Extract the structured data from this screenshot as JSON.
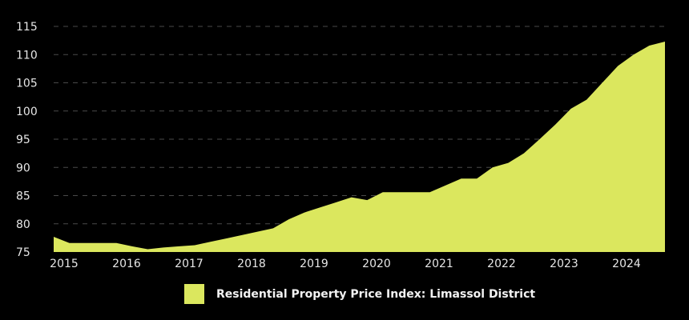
{
  "chart_data": {
    "type": "area",
    "title": "",
    "xlabel": "",
    "ylabel": "",
    "ylim": [
      75,
      115
    ],
    "yticks": [
      "75",
      "80",
      "85",
      "90",
      "95",
      "100",
      "105",
      "110",
      "115"
    ],
    "xticks": [
      "2015",
      "2016",
      "2017",
      "2018",
      "2019",
      "2020",
      "2021",
      "2022",
      "2023",
      "2024"
    ],
    "grid": "horizontal dashed",
    "legend_position": "bottom",
    "x": [
      "2014-Q4",
      "2015-Q1",
      "2015-Q2",
      "2015-Q3",
      "2015-Q4",
      "2016-Q1",
      "2016-Q2",
      "2016-Q3",
      "2016-Q4",
      "2017-Q1",
      "2017-Q2",
      "2017-Q3",
      "2017-Q4",
      "2018-Q1",
      "2018-Q2",
      "2018-Q3",
      "2018-Q4",
      "2019-Q1",
      "2019-Q2",
      "2019-Q3",
      "2019-Q4",
      "2020-Q1",
      "2020-Q2",
      "2020-Q3",
      "2020-Q4",
      "2021-Q1",
      "2021-Q2",
      "2021-Q3",
      "2021-Q4",
      "2022-Q1",
      "2022-Q2",
      "2022-Q3",
      "2022-Q4",
      "2023-Q1",
      "2023-Q2",
      "2023-Q3",
      "2023-Q4",
      "2024-Q1",
      "2024-Q2",
      "2024-Q3"
    ],
    "series": [
      {
        "name": "Residential Property Price Index: Limassol District",
        "color": "#dbe75e",
        "values": [
          77.7,
          76.6,
          76.6,
          76.6,
          76.6,
          76.0,
          75.5,
          75.8,
          76.0,
          76.2,
          76.8,
          77.4,
          78.0,
          78.6,
          79.2,
          80.8,
          82.0,
          82.9,
          83.8,
          84.7,
          84.2,
          85.6,
          85.6,
          85.6,
          85.6,
          86.8,
          88.0,
          88.0,
          90.0,
          90.8,
          92.5,
          95.0,
          97.6,
          100.4,
          102.0,
          105.0,
          108.0,
          110.0,
          111.6,
          112.3
        ]
      }
    ]
  }
}
